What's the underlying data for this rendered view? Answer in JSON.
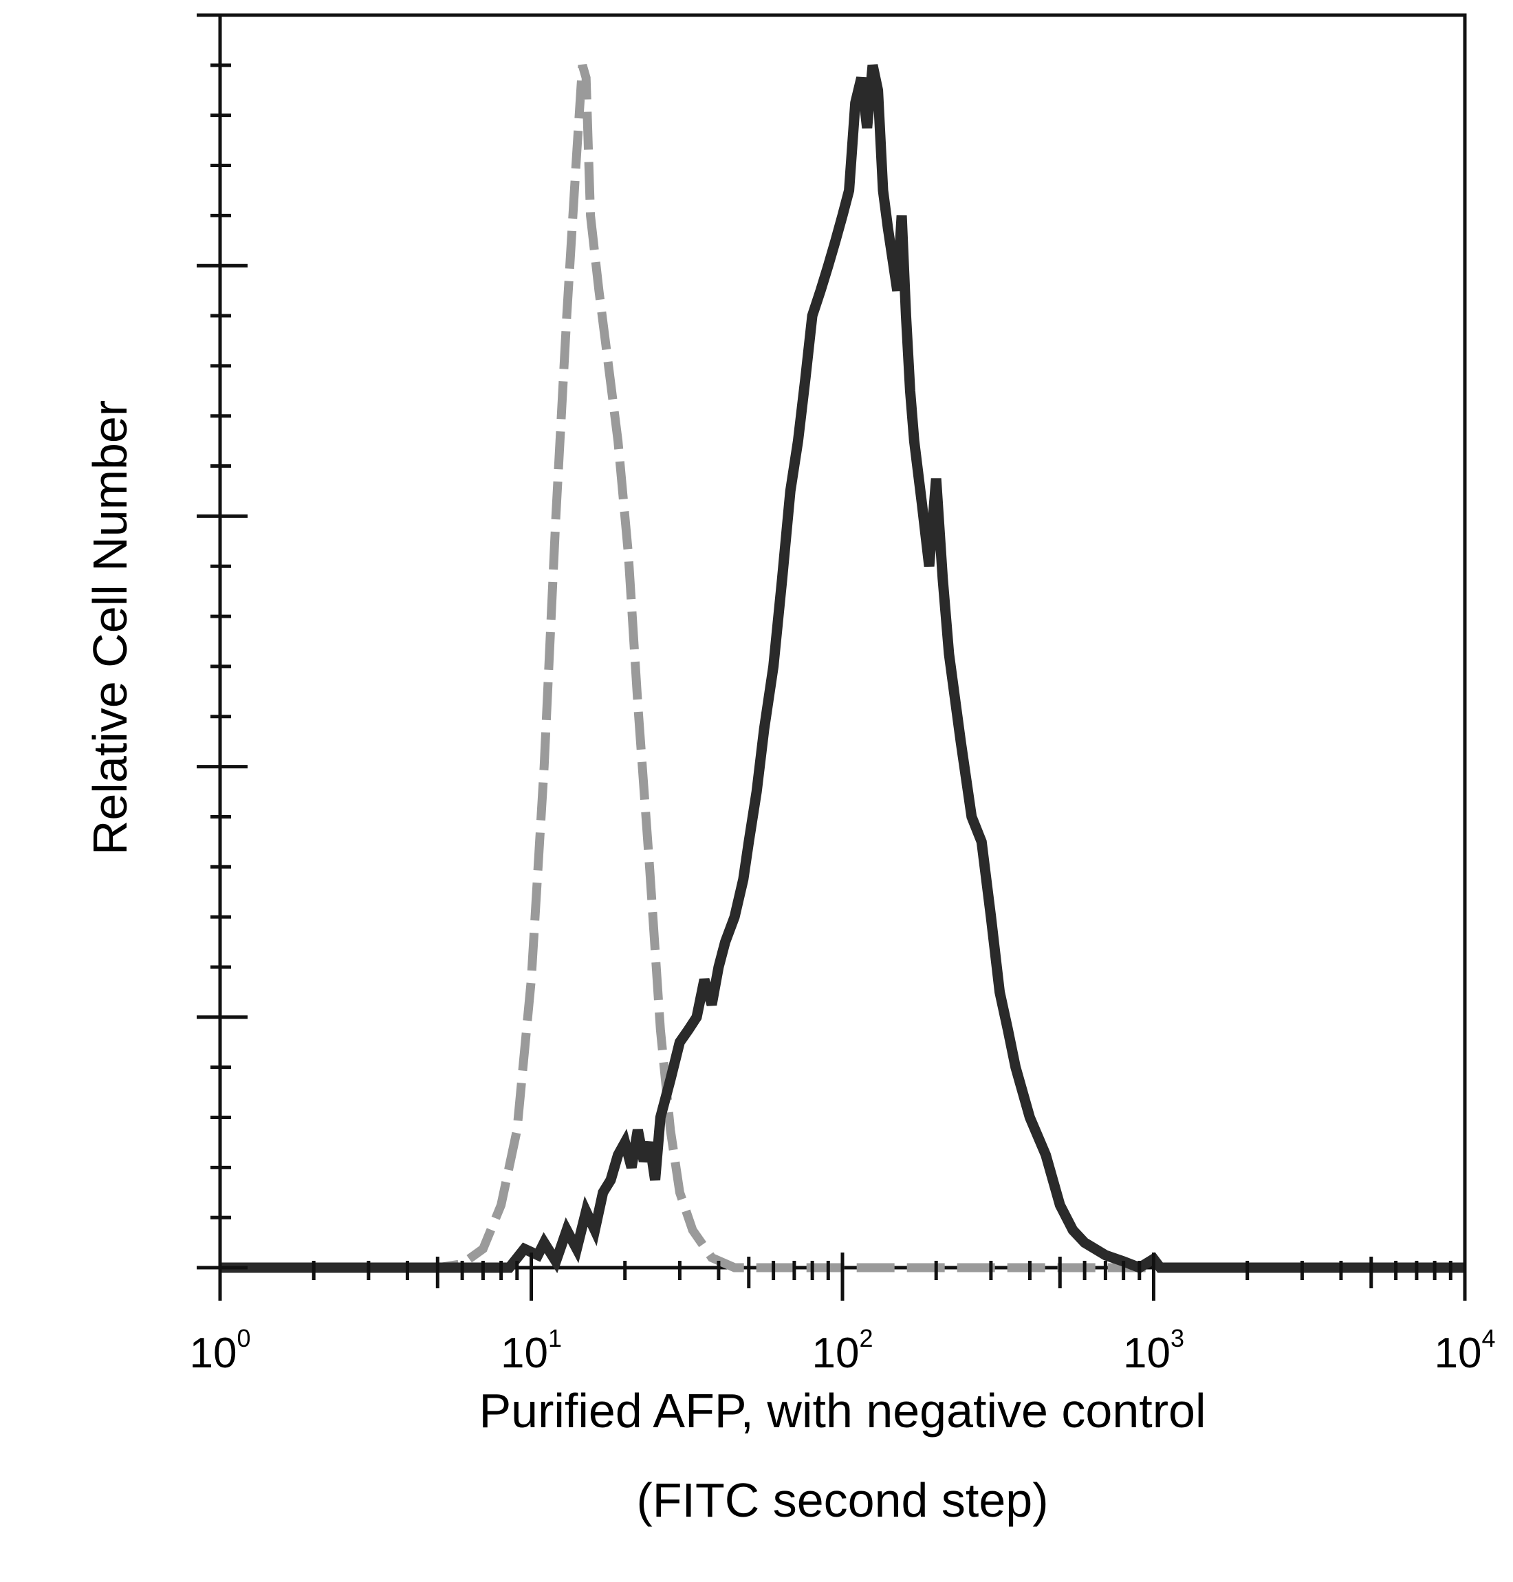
{
  "chart_data": {
    "type": "line",
    "subtype": "flow-cytometry-histogram",
    "xlabel_line1": "Purified AFP, with negative control",
    "xlabel_line2": "(FITC second step)",
    "ylabel": "Relative Cell Number",
    "x_scale": "log",
    "xlim": [
      1,
      10000
    ],
    "ylim": [
      0,
      100
    ],
    "x_ticks": [
      {
        "base": "10",
        "exp": "0",
        "value": 1
      },
      {
        "base": "10",
        "exp": "1",
        "value": 10
      },
      {
        "base": "10",
        "exp": "2",
        "value": 100
      },
      {
        "base": "10",
        "exp": "3",
        "value": 1000
      },
      {
        "base": "10",
        "exp": "4",
        "value": 10000
      }
    ],
    "y_major_ticks": [
      0,
      20,
      40,
      60,
      80,
      100
    ],
    "y_minor_per_major": 4,
    "grid": false,
    "legend": "none",
    "series": [
      {
        "role": "negative control",
        "style": "dashed",
        "color": "#9a9a9a",
        "points": [
          [
            1,
            0
          ],
          [
            5.0,
            0
          ],
          [
            6.0,
            0.3
          ],
          [
            7.0,
            1.5
          ],
          [
            8.0,
            5
          ],
          [
            9.0,
            11
          ],
          [
            10.0,
            23
          ],
          [
            11.0,
            40
          ],
          [
            12.0,
            60
          ],
          [
            13.0,
            76
          ],
          [
            14.0,
            89
          ],
          [
            14.6,
            96
          ],
          [
            15.0,
            95
          ],
          [
            15.5,
            84
          ],
          [
            16.5,
            78
          ],
          [
            17.5,
            73
          ],
          [
            19.0,
            66
          ],
          [
            20.5,
            57
          ],
          [
            22.0,
            45
          ],
          [
            24.0,
            32
          ],
          [
            26.0,
            19
          ],
          [
            28.0,
            11
          ],
          [
            30.0,
            6
          ],
          [
            33.0,
            3
          ],
          [
            38.0,
            0.8
          ],
          [
            45.0,
            0
          ],
          [
            10000,
            0
          ]
        ]
      },
      {
        "role": "AFP stained",
        "style": "solid",
        "color": "#2a2a2a",
        "points": [
          [
            1,
            0
          ],
          [
            8.5,
            0
          ],
          [
            9.5,
            1.5
          ],
          [
            10.5,
            1
          ],
          [
            11,
            2
          ],
          [
            12,
            0.5
          ],
          [
            13,
            3
          ],
          [
            14,
            1.5
          ],
          [
            15,
            4.5
          ],
          [
            16,
            3
          ],
          [
            17,
            6
          ],
          [
            18,
            7
          ],
          [
            19,
            9
          ],
          [
            20,
            10
          ],
          [
            21,
            8
          ],
          [
            22,
            11
          ],
          [
            23,
            8.5
          ],
          [
            24,
            10
          ],
          [
            25,
            7
          ],
          [
            26,
            12
          ],
          [
            28,
            15
          ],
          [
            30,
            18
          ],
          [
            32,
            19
          ],
          [
            34,
            20
          ],
          [
            36,
            23
          ],
          [
            38,
            21
          ],
          [
            40,
            24
          ],
          [
            42,
            26
          ],
          [
            45,
            28
          ],
          [
            48,
            31
          ],
          [
            50,
            34
          ],
          [
            53,
            38
          ],
          [
            56,
            43
          ],
          [
            60,
            48
          ],
          [
            64,
            55
          ],
          [
            68,
            62
          ],
          [
            72,
            66
          ],
          [
            76,
            71
          ],
          [
            80,
            76
          ],
          [
            85,
            78
          ],
          [
            90,
            80
          ],
          [
            95,
            82
          ],
          [
            100,
            84
          ],
          [
            105,
            86
          ],
          [
            110,
            93
          ],
          [
            115,
            95
          ],
          [
            120,
            91
          ],
          [
            125,
            96
          ],
          [
            130,
            94
          ],
          [
            135,
            86
          ],
          [
            140,
            83
          ],
          [
            150,
            78
          ],
          [
            155,
            84
          ],
          [
            160,
            76
          ],
          [
            165,
            70
          ],
          [
            170,
            66
          ],
          [
            180,
            61
          ],
          [
            190,
            56
          ],
          [
            200,
            63
          ],
          [
            210,
            55
          ],
          [
            220,
            49
          ],
          [
            240,
            42
          ],
          [
            260,
            36
          ],
          [
            280,
            34
          ],
          [
            300,
            28
          ],
          [
            320,
            22
          ],
          [
            340,
            19
          ],
          [
            360,
            16
          ],
          [
            400,
            12
          ],
          [
            450,
            9
          ],
          [
            500,
            5
          ],
          [
            550,
            3
          ],
          [
            600,
            2
          ],
          [
            700,
            1
          ],
          [
            800,
            0.5
          ],
          [
            900,
            0
          ],
          [
            1000,
            0.7
          ],
          [
            1050,
            0
          ],
          [
            10000,
            0
          ]
        ]
      }
    ]
  }
}
